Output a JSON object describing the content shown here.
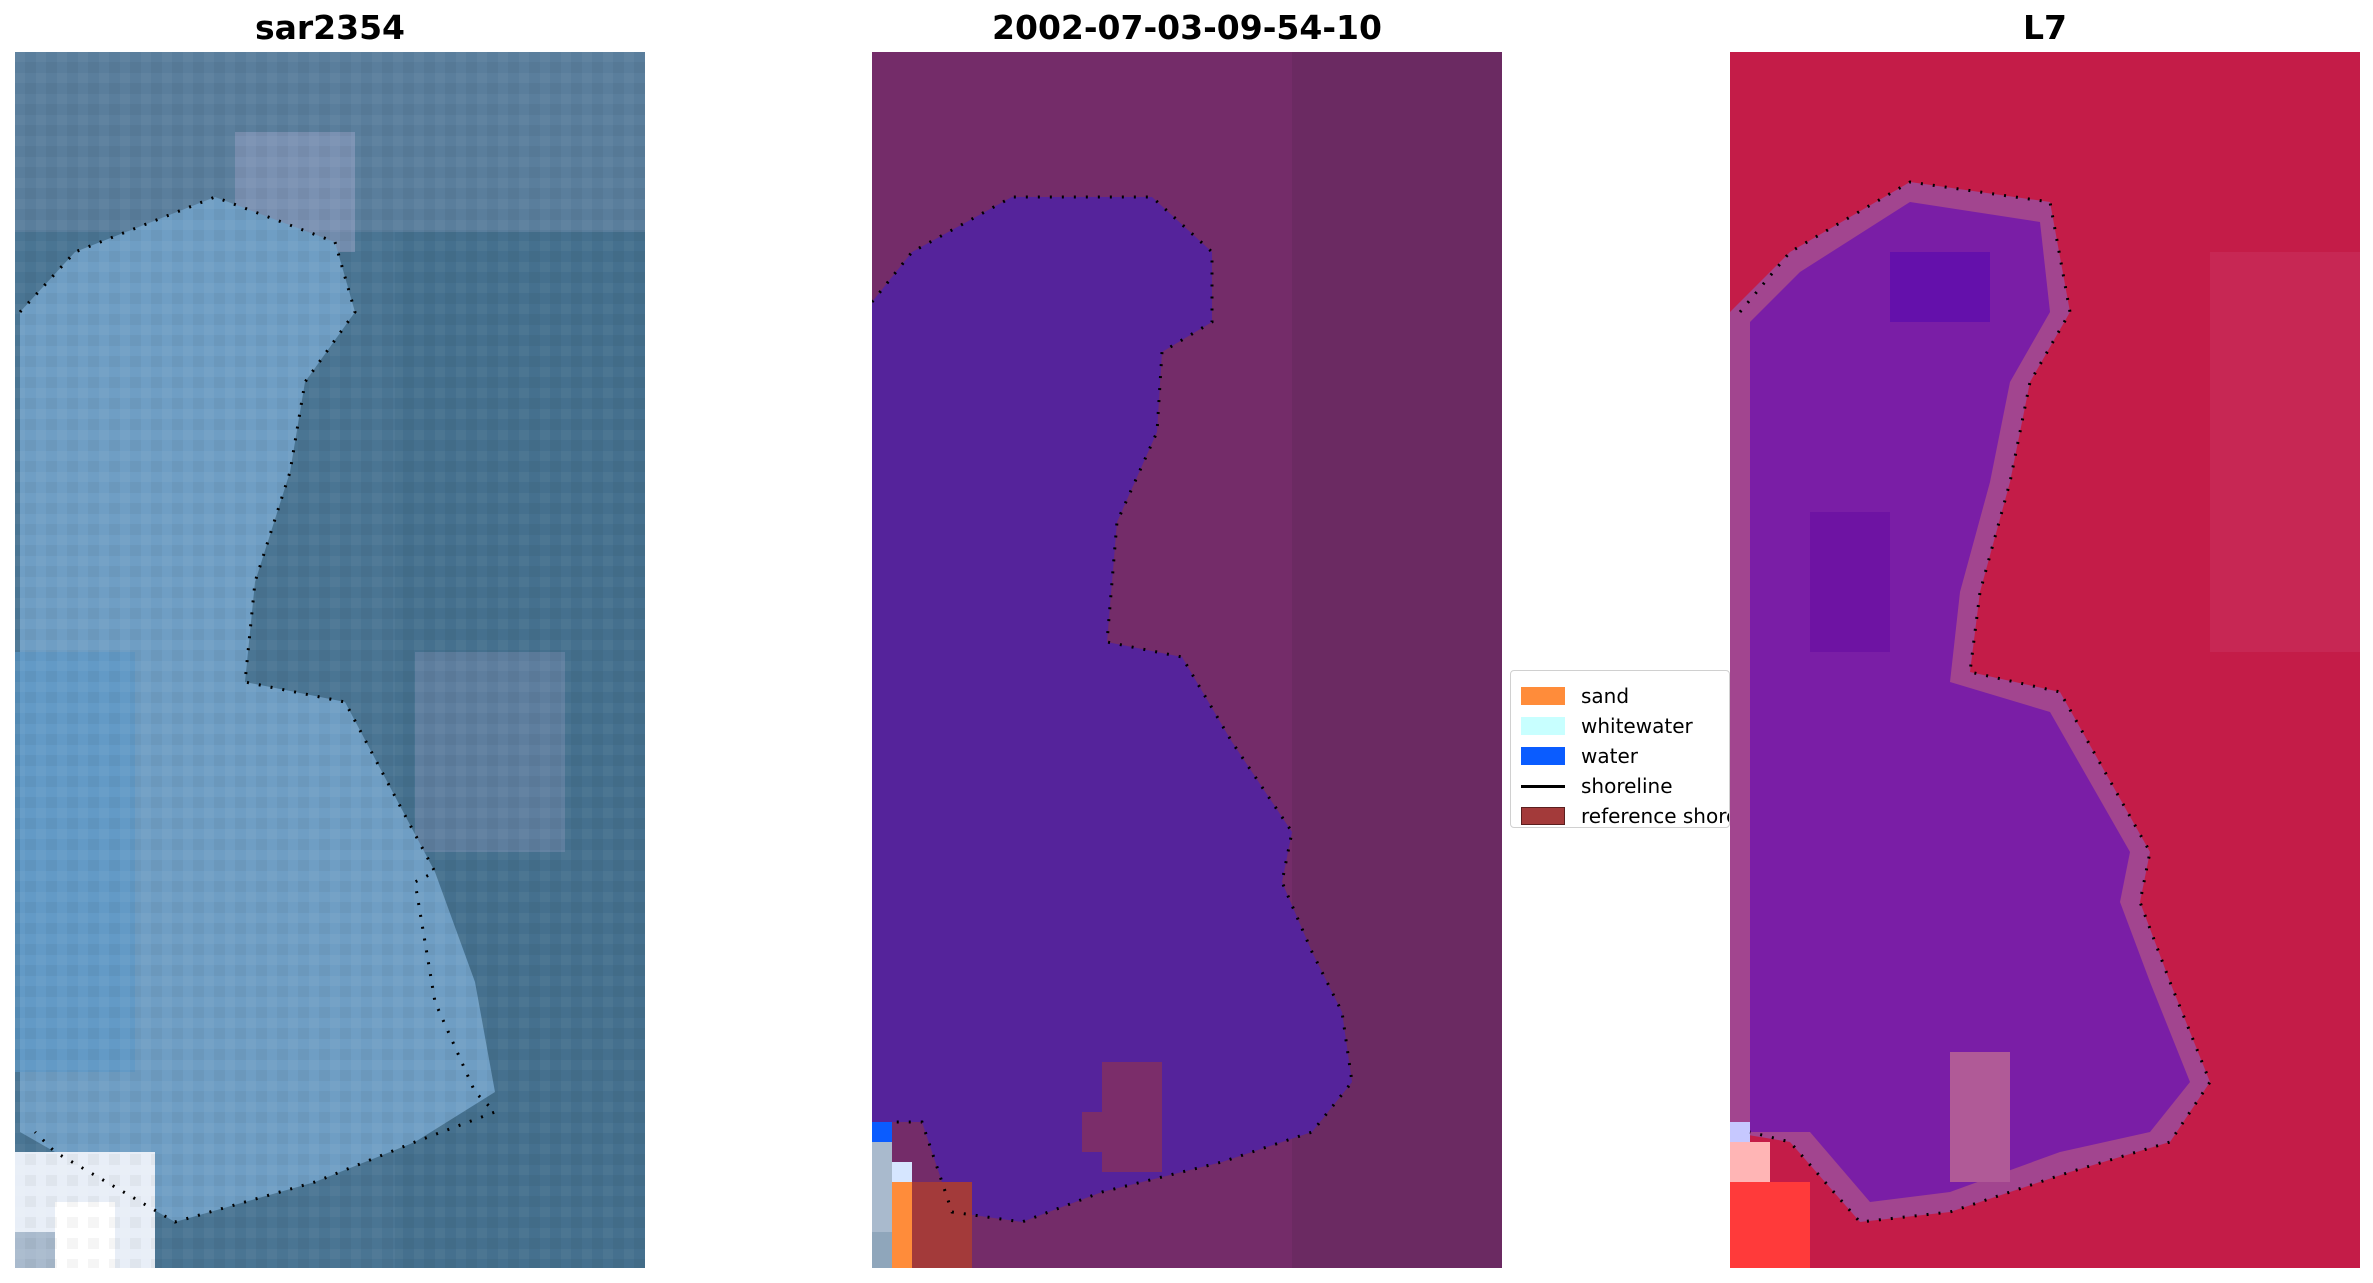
{
  "panels": [
    {
      "title": "sar2354",
      "palette": "rgb"
    },
    {
      "title": "2002-07-03-09-54-10",
      "palette": "classified"
    },
    {
      "title": "L7",
      "palette": "index"
    }
  ],
  "legend": [
    {
      "label": "sand",
      "color": "#ff8c3a",
      "kind": "box"
    },
    {
      "label": "whitewater",
      "color": "#c8ffff",
      "kind": "box"
    },
    {
      "label": "water",
      "color": "#0a5cff",
      "kind": "box"
    },
    {
      "label": "shoreline",
      "color": "#000000",
      "kind": "line"
    },
    {
      "label": "reference shoreline",
      "color": "#a33a3a",
      "kind": "box"
    }
  ],
  "colors": {
    "rgb_land": "#4a7593",
    "rgb_water": "#6f9ec4",
    "rgb_white": "#e8eef7",
    "class_land": "#742c69",
    "class_water": "#55239b",
    "index_land": "#c41c48",
    "index_water": "#7a1ea6"
  }
}
